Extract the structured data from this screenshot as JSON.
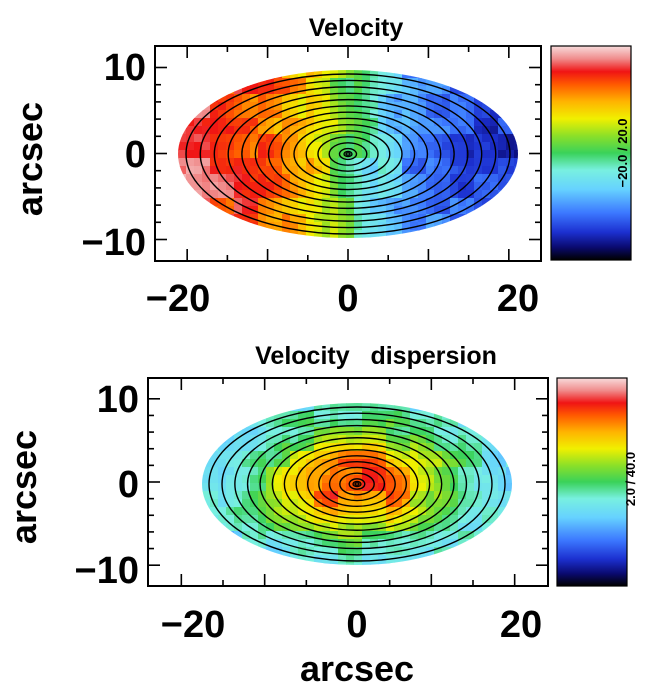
{
  "chart_data": [
    {
      "type": "heatmap",
      "title": "Velocity",
      "xlabel": "",
      "ylabel": "arcsec",
      "xlim": [
        -24,
        24
      ],
      "ylim": [
        -12.5,
        12.5
      ],
      "xticks": [
        -20,
        0,
        20
      ],
      "yticks": [
        10,
        0,
        -10
      ],
      "xtick_labels": [
        "−20",
        "0",
        "20"
      ],
      "ytick_labels": [
        "10",
        "0",
        "−10"
      ],
      "colorbar_label": "−20.0 / 20.0",
      "colorbar_range": [
        -20.0,
        20.0
      ],
      "mean_gradient": "rotation: receding (red) at negative x, approaching (blue) at positive x",
      "colors": {
        "colormap": "sauron"
      }
    },
    {
      "type": "heatmap",
      "title": "Velocity   dispersion",
      "xlabel": "arcsec",
      "ylabel": "arcsec",
      "xlim": [
        -24,
        24
      ],
      "ylim": [
        -12.5,
        12.5
      ],
      "xticks": [
        -20,
        0,
        20
      ],
      "yticks": [
        10,
        0,
        -10
      ],
      "xtick_labels": [
        "−20",
        "0",
        "20"
      ],
      "ytick_labels": [
        "10",
        "0",
        "−10"
      ],
      "colorbar_label": "2.0 / 40.0",
      "colorbar_range": [
        2.0,
        40.0
      ],
      "mean_gradient": "peaked at center (red), decreasing outward (green/cyan)",
      "colors": {
        "colormap": "sauron"
      }
    }
  ]
}
